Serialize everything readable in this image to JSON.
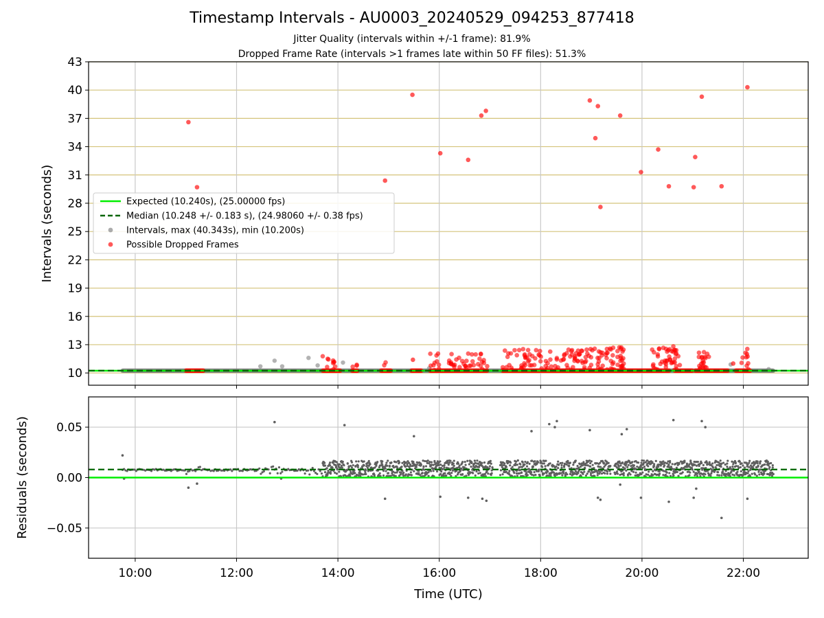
{
  "title": "Timestamp Intervals - AU0003_20240529_094253_877418",
  "subtitle_1": "Jitter Quality (intervals within +/-1 frame): 81.9%",
  "subtitle_2": "Dropped Frame Rate (intervals >1 frames late within 50 FF files): 51.3%",
  "colors": {
    "expected": "#00ee00",
    "median": "#006400",
    "intervals": "#808080",
    "dropped": "#ff0000",
    "hgrid_top": "#d4c37a",
    "grid": "#c8c8c8",
    "residuals": "#5f5f5f"
  },
  "chart_data": [
    {
      "type": "scatter",
      "title": "",
      "xlabel": "",
      "ylabel": "Intervals (seconds)",
      "x_unit": "hours (UTC)",
      "xlim": [
        9.08,
        23.28
      ],
      "ylim": [
        8.7,
        43
      ],
      "xticks": [
        10,
        12,
        14,
        16,
        18,
        20,
        22
      ],
      "yticks": [
        10,
        13,
        16,
        19,
        22,
        25,
        28,
        31,
        34,
        37,
        40,
        43
      ],
      "grid": "horizontal and vertical",
      "legend_position": "center-left",
      "reference_lines": [
        {
          "name": "Expected (10.240s), (25.00000 fps)",
          "y": 10.24,
          "style": "solid",
          "color": "#00ee00"
        },
        {
          "name": "Median (10.248 +/- 0.183 s), (24.98060 +/- 0.38 fps)",
          "y": 10.248,
          "style": "dashed",
          "color": "#006400"
        }
      ],
      "series": [
        {
          "name": "Intervals, max (40.343s), min (10.200s)",
          "color": "#808080",
          "x_range": [
            9.75,
            22.6
          ],
          "baseline": 10.24,
          "points": [
            {
              "x": 12.47,
              "y": 10.7
            },
            {
              "x": 12.75,
              "y": 11.3
            },
            {
              "x": 12.9,
              "y": 10.7
            },
            {
              "x": 13.42,
              "y": 11.6
            },
            {
              "x": 13.6,
              "y": 10.8
            },
            {
              "x": 14.1,
              "y": 11.1
            },
            {
              "x": 15.8,
              "y": 10.5
            },
            {
              "x": 21.75,
              "y": 10.9
            },
            {
              "x": 22.5,
              "y": 10.4
            }
          ]
        },
        {
          "name": "Possible Dropped Frames",
          "color": "#ff0000",
          "baseline": 10.24,
          "points": [
            {
              "x": 11.05,
              "y": 36.6
            },
            {
              "x": 11.22,
              "y": 29.7
            },
            {
              "x": 14.93,
              "y": 30.4
            },
            {
              "x": 15.47,
              "y": 39.5
            },
            {
              "x": 16.02,
              "y": 33.3
            },
            {
              "x": 16.57,
              "y": 32.6
            },
            {
              "x": 16.83,
              "y": 37.3
            },
            {
              "x": 16.92,
              "y": 37.8
            },
            {
              "x": 18.97,
              "y": 38.9
            },
            {
              "x": 19.08,
              "y": 34.9
            },
            {
              "x": 19.13,
              "y": 38.3
            },
            {
              "x": 19.18,
              "y": 27.6
            },
            {
              "x": 19.57,
              "y": 37.3
            },
            {
              "x": 19.98,
              "y": 31.3
            },
            {
              "x": 20.32,
              "y": 33.7
            },
            {
              "x": 20.53,
              "y": 29.8
            },
            {
              "x": 21.02,
              "y": 29.7
            },
            {
              "x": 21.05,
              "y": 32.9
            },
            {
              "x": 21.18,
              "y": 39.3
            },
            {
              "x": 21.57,
              "y": 29.8
            },
            {
              "x": 22.08,
              "y": 40.3
            },
            {
              "x": 15.48,
              "y": 11.4
            },
            {
              "x": 21.8,
              "y": 11.0
            }
          ],
          "baseline_segments": [
            [
              11.0,
              11.35
            ],
            [
              13.7,
              14.05
            ],
            [
              14.28,
              14.4
            ],
            [
              14.85,
              15.05
            ],
            [
              15.45,
              15.65
            ],
            [
              15.82,
              16.95
            ],
            [
              17.25,
              20.55
            ],
            [
              20.65,
              21.0
            ],
            [
              21.05,
              21.7
            ],
            [
              21.85,
              22.15
            ]
          ],
          "clusters": [
            {
              "x_range": [
                13.7,
                14.0
              ],
              "ymax": 11.9,
              "count": 10
            },
            {
              "x_range": [
                14.28,
                14.38
              ],
              "ymax": 11.0,
              "count": 3
            },
            {
              "x_range": [
                14.85,
                14.95
              ],
              "ymax": 11.2,
              "count": 2
            },
            {
              "x_range": [
                15.82,
                16.95
              ],
              "ymax": 12.2,
              "count": 45
            },
            {
              "x_range": [
                17.25,
                19.4
              ],
              "ymax": 12.6,
              "count": 120
            },
            {
              "x_range": [
                19.4,
                19.65
              ],
              "ymax": 12.8,
              "count": 25
            },
            {
              "x_range": [
                20.2,
                20.75
              ],
              "ymax": 12.9,
              "count": 45
            },
            {
              "x_range": [
                21.1,
                21.35
              ],
              "ymax": 12.5,
              "count": 20
            },
            {
              "x_range": [
                21.95,
                22.1
              ],
              "ymax": 12.8,
              "count": 10
            }
          ]
        }
      ]
    },
    {
      "type": "scatter",
      "title": "",
      "xlabel": "Time (UTC)",
      "ylabel": "Residuals (seconds)",
      "xlim": [
        9.08,
        23.28
      ],
      "ylim": [
        -0.08,
        0.08
      ],
      "xticks": [
        10,
        12,
        14,
        16,
        18,
        20,
        22
      ],
      "xtick_labels": [
        "10:00",
        "12:00",
        "14:00",
        "16:00",
        "18:00",
        "20:00",
        "22:00"
      ],
      "yticks": [
        0.05,
        0.0,
        -0.05
      ],
      "ytick_labels": [
        "0.05",
        "0.00",
        "−0.05"
      ],
      "grid": "horizontal and vertical",
      "reference_lines": [
        {
          "y": 0.0,
          "style": "solid",
          "color": "#00ee00"
        },
        {
          "y": 0.008,
          "style": "dashed",
          "color": "#006400"
        }
      ],
      "series": [
        {
          "color": "#5f5f5f",
          "band": {
            "x_range": [
              13.7,
              22.6
            ],
            "y_range": [
              0.001,
              0.017
            ]
          },
          "sparse_range": [
            9.75,
            13.7
          ],
          "points": [
            {
              "x": 9.75,
              "y": 0.022
            },
            {
              "x": 9.78,
              "y": -0.001
            },
            {
              "x": 11.05,
              "y": -0.01
            },
            {
              "x": 11.22,
              "y": -0.006
            },
            {
              "x": 12.75,
              "y": 0.055
            },
            {
              "x": 12.88,
              "y": -0.001
            },
            {
              "x": 14.13,
              "y": 0.052
            },
            {
              "x": 14.93,
              "y": -0.021
            },
            {
              "x": 15.5,
              "y": 0.041
            },
            {
              "x": 16.02,
              "y": -0.019
            },
            {
              "x": 16.57,
              "y": -0.02
            },
            {
              "x": 16.85,
              "y": -0.021
            },
            {
              "x": 16.93,
              "y": -0.023
            },
            {
              "x": 17.82,
              "y": 0.046
            },
            {
              "x": 18.17,
              "y": 0.053
            },
            {
              "x": 18.28,
              "y": 0.05
            },
            {
              "x": 18.32,
              "y": 0.056
            },
            {
              "x": 18.97,
              "y": 0.047
            },
            {
              "x": 19.13,
              "y": -0.02
            },
            {
              "x": 19.18,
              "y": -0.022
            },
            {
              "x": 19.57,
              "y": -0.007
            },
            {
              "x": 19.6,
              "y": 0.043
            },
            {
              "x": 19.7,
              "y": 0.048
            },
            {
              "x": 19.98,
              "y": -0.02
            },
            {
              "x": 20.53,
              "y": -0.024
            },
            {
              "x": 20.62,
              "y": 0.057
            },
            {
              "x": 21.02,
              "y": -0.02
            },
            {
              "x": 21.07,
              "y": -0.011
            },
            {
              "x": 21.18,
              "y": 0.056
            },
            {
              "x": 21.25,
              "y": 0.05
            },
            {
              "x": 21.57,
              "y": -0.04
            },
            {
              "x": 22.08,
              "y": -0.021
            }
          ]
        }
      ]
    }
  ]
}
